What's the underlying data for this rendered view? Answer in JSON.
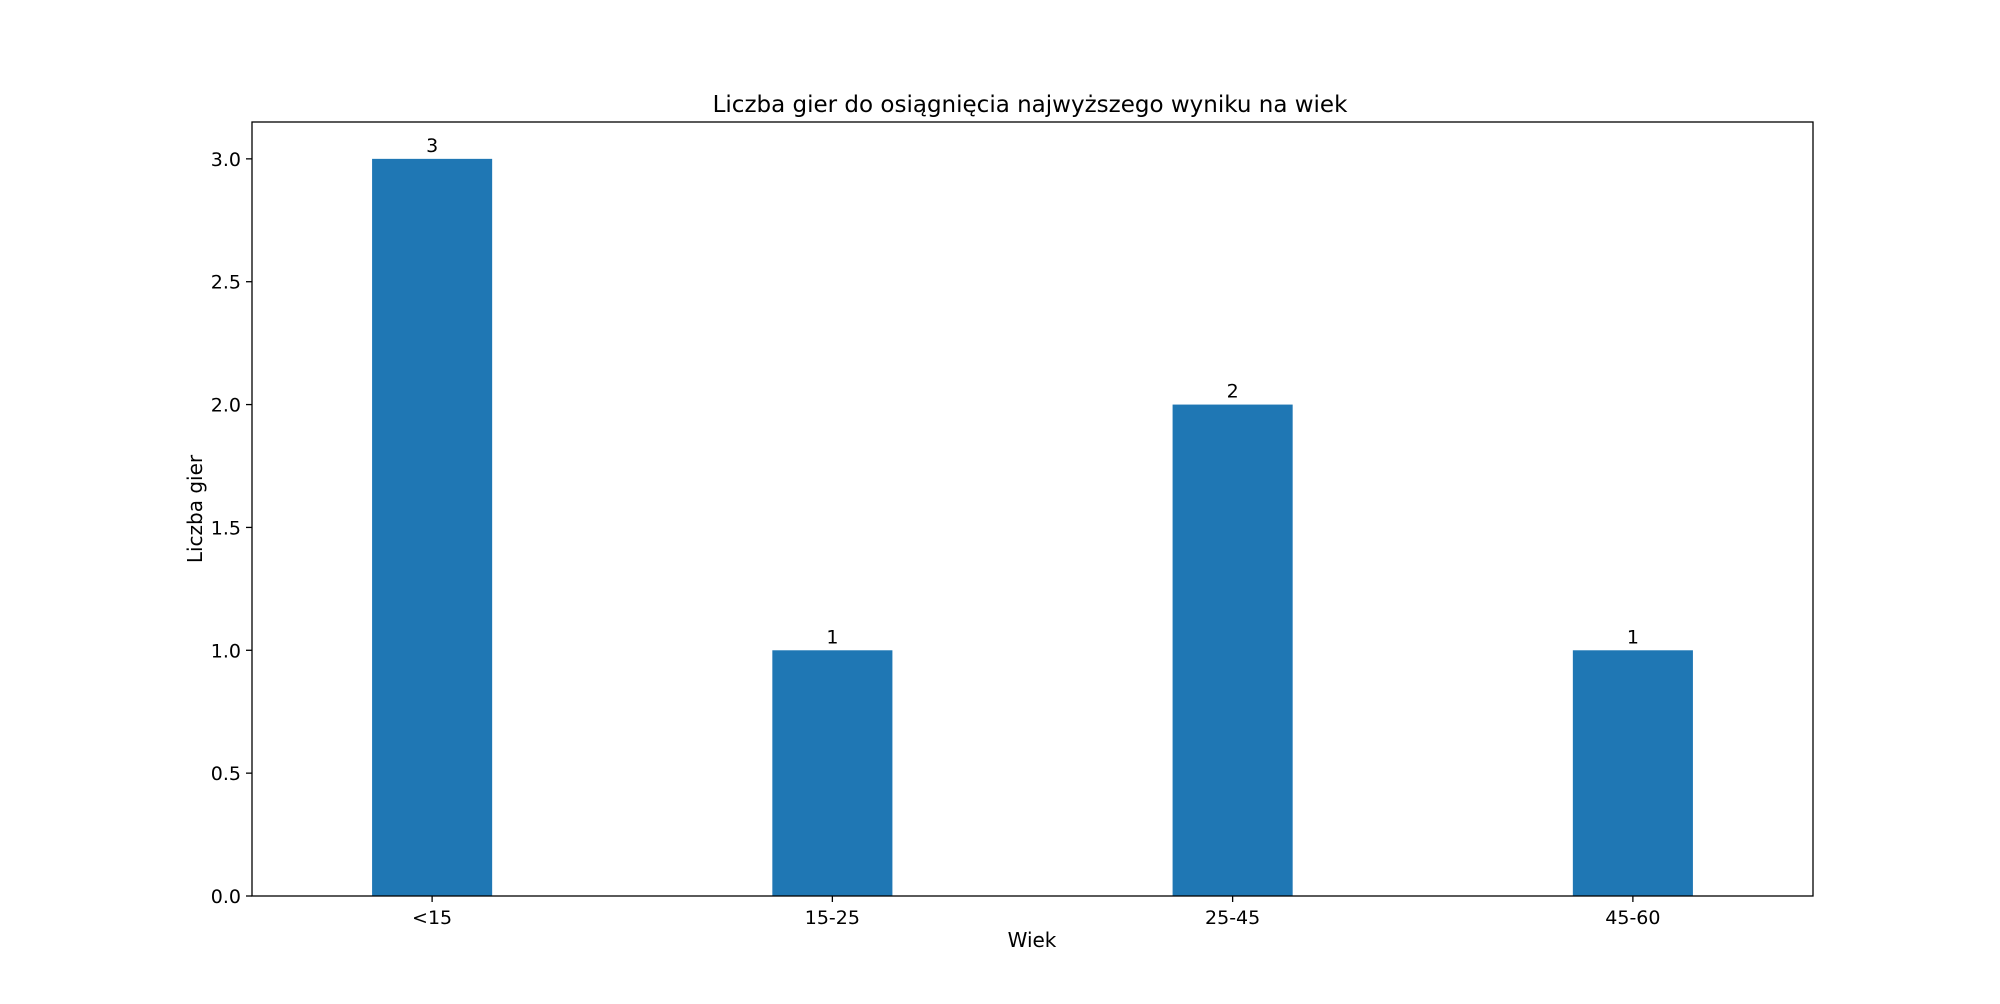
{
  "chart_data": {
    "type": "bar",
    "title": "Liczba gier do osiągnięcia najwyższego wyniku na wiek",
    "xlabel": "Wiek",
    "ylabel": "Liczba gier",
    "categories": [
      "<15",
      "15-25",
      "25-45",
      "45-60"
    ],
    "values": [
      3,
      1,
      2,
      1
    ],
    "data_labels": [
      "3",
      "1",
      "2",
      "1"
    ],
    "ylim": [
      0,
      3.15
    ],
    "yticks": [
      0.0,
      0.5,
      1.0,
      1.5,
      2.0,
      2.5,
      3.0
    ],
    "ytick_labels": [
      "0.0",
      "0.5",
      "1.0",
      "1.5",
      "2.0",
      "2.5",
      "3.0"
    ],
    "grid": false,
    "colors": {
      "bar": "#1f77b4",
      "axis": "#000000",
      "text": "#000000"
    }
  }
}
